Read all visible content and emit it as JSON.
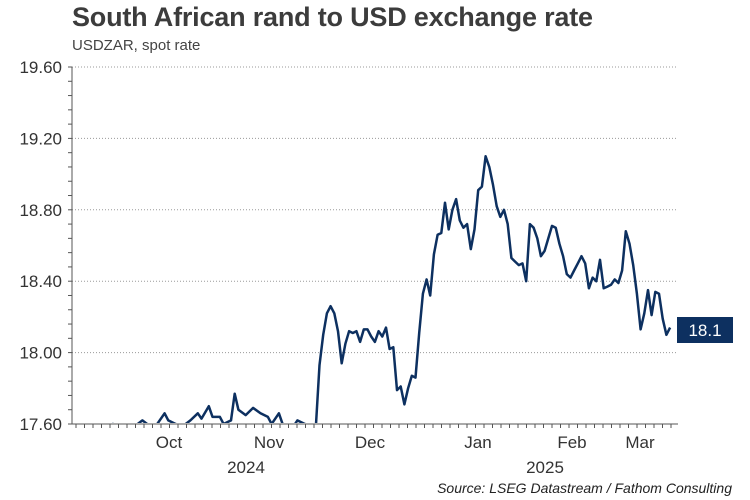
{
  "title": "South African rand to USD exchange rate",
  "subtitle": "USDZAR, spot rate",
  "source": "Source: LSEG Datastream / Fathom Consulting",
  "chart_data": {
    "type": "line",
    "y_ticks": [
      "19.60",
      "19.20",
      "18.80",
      "18.40",
      "18.00",
      "17.60"
    ],
    "ylim": [
      17.6,
      19.6
    ],
    "month_labels": [
      "Oct",
      "Nov",
      "Dec",
      "Jan",
      "Feb",
      "Mar"
    ],
    "year_labels": [
      "2024",
      "2025"
    ],
    "last_value_label": "18.1",
    "grid": "horizontal dotted",
    "line_color": "#0d3060",
    "series": [
      {
        "values": [
          [
            0,
            17.52
          ],
          [
            2,
            17.55
          ],
          [
            4,
            17.58
          ],
          [
            6,
            17.52
          ],
          [
            8,
            17.56
          ],
          [
            10,
            17.6
          ],
          [
            12,
            17.55
          ],
          [
            14,
            17.52
          ],
          [
            16,
            17.58
          ],
          [
            18,
            17.62
          ],
          [
            20,
            17.58
          ],
          [
            22,
            17.6
          ],
          [
            24,
            17.66
          ],
          [
            25,
            17.62
          ],
          [
            27,
            17.6
          ],
          [
            29,
            17.58
          ],
          [
            31,
            17.62
          ],
          [
            33,
            17.66
          ],
          [
            34,
            17.63
          ],
          [
            36,
            17.7
          ],
          [
            37,
            17.64
          ],
          [
            39,
            17.64
          ],
          [
            40,
            17.6
          ],
          [
            42,
            17.62
          ],
          [
            43,
            17.77
          ],
          [
            44,
            17.68
          ],
          [
            46,
            17.65
          ],
          [
            48,
            17.69
          ],
          [
            50,
            17.66
          ],
          [
            52,
            17.64
          ],
          [
            53,
            17.6
          ],
          [
            55,
            17.66
          ],
          [
            56,
            17.6
          ],
          [
            59,
            17.58
          ],
          [
            60,
            17.62
          ],
          [
            62,
            17.6
          ],
          [
            64,
            17.55
          ],
          [
            65,
            17.5
          ],
          [
            66,
            17.93
          ],
          [
            67,
            18.1
          ],
          [
            68,
            18.22
          ],
          [
            69,
            18.26
          ],
          [
            70,
            18.22
          ],
          [
            71,
            18.12
          ],
          [
            72,
            17.94
          ],
          [
            73,
            18.05
          ],
          [
            74,
            18.12
          ],
          [
            75,
            18.11
          ],
          [
            76,
            18.12
          ],
          [
            77,
            18.06
          ],
          [
            78,
            18.13
          ],
          [
            79,
            18.13
          ],
          [
            80,
            18.09
          ],
          [
            81,
            18.06
          ],
          [
            82,
            18.12
          ],
          [
            83,
            18.09
          ],
          [
            84,
            18.14
          ],
          [
            85,
            18.02
          ],
          [
            86,
            18.03
          ],
          [
            87,
            17.79
          ],
          [
            88,
            17.81
          ],
          [
            89,
            17.71
          ],
          [
            90,
            17.8
          ],
          [
            91,
            17.87
          ],
          [
            92,
            17.86
          ],
          [
            93,
            18.11
          ],
          [
            94,
            18.33
          ],
          [
            95,
            18.41
          ],
          [
            96,
            18.32
          ],
          [
            97,
            18.55
          ],
          [
            98,
            18.66
          ],
          [
            99,
            18.67
          ],
          [
            100,
            18.84
          ],
          [
            101,
            18.69
          ],
          [
            102,
            18.8
          ],
          [
            103,
            18.86
          ],
          [
            104,
            18.74
          ],
          [
            105,
            18.7
          ],
          [
            106,
            18.72
          ],
          [
            107,
            18.58
          ],
          [
            108,
            18.69
          ],
          [
            109,
            18.91
          ],
          [
            110,
            18.93
          ],
          [
            111,
            19.1
          ],
          [
            112,
            19.04
          ],
          [
            113,
            18.94
          ],
          [
            114,
            18.82
          ],
          [
            115,
            18.76
          ],
          [
            116,
            18.8
          ],
          [
            117,
            18.72
          ],
          [
            118,
            18.53
          ],
          [
            119,
            18.51
          ],
          [
            120,
            18.49
          ],
          [
            121,
            18.5
          ],
          [
            122,
            18.4
          ],
          [
            123,
            18.72
          ],
          [
            124,
            18.7
          ],
          [
            125,
            18.64
          ],
          [
            126,
            18.54
          ],
          [
            127,
            18.57
          ],
          [
            128,
            18.64
          ],
          [
            129,
            18.71
          ],
          [
            130,
            18.7
          ],
          [
            131,
            18.61
          ],
          [
            132,
            18.54
          ],
          [
            133,
            18.44
          ],
          [
            134,
            18.42
          ],
          [
            135,
            18.46
          ],
          [
            136,
            18.5
          ],
          [
            137,
            18.54
          ],
          [
            138,
            18.5
          ],
          [
            139,
            18.36
          ],
          [
            140,
            18.42
          ],
          [
            141,
            18.4
          ],
          [
            142,
            18.52
          ],
          [
            143,
            18.36
          ],
          [
            144,
            18.37
          ],
          [
            145,
            18.38
          ],
          [
            146,
            18.41
          ],
          [
            147,
            18.39
          ],
          [
            148,
            18.46
          ],
          [
            149,
            18.68
          ],
          [
            150,
            18.61
          ],
          [
            151,
            18.49
          ],
          [
            152,
            18.33
          ],
          [
            153,
            18.13
          ],
          [
            154,
            18.22
          ],
          [
            155,
            18.35
          ],
          [
            156,
            18.21
          ],
          [
            157,
            18.34
          ],
          [
            158,
            18.33
          ],
          [
            159,
            18.19
          ],
          [
            160,
            18.1
          ],
          [
            161,
            18.14
          ]
        ]
      }
    ]
  }
}
